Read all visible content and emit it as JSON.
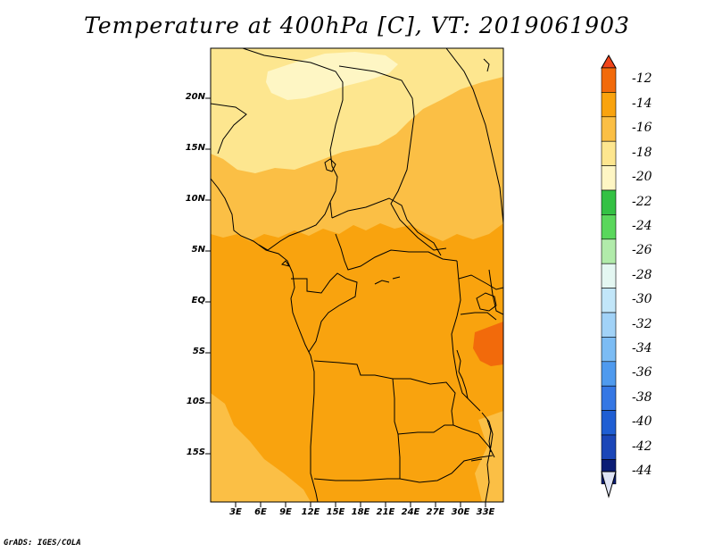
{
  "title": "Temperature at 400hPa [C], VT: 2019061903",
  "map": {
    "variable": "Temperature",
    "level": "400hPa",
    "units": "C",
    "valid_time": "2019061903",
    "lat_labels": [
      "20N",
      "15N",
      "10N",
      "5N",
      "EQ",
      "5S",
      "10S",
      "15S"
    ],
    "lon_labels": [
      "3E",
      "6E",
      "9E",
      "12E",
      "15E",
      "18E",
      "21E",
      "24E",
      "27E",
      "30E",
      "33E"
    ],
    "colors": {
      "c_le_22": "#fef6c4",
      "c_20_18": "#fde68f",
      "c_18_16": "#fbbf45",
      "c_16_14": "#f9a30e",
      "c_14_12": "#f26a0b",
      "c_gt_12": "#f0441a",
      "boundary": "#000000"
    }
  },
  "colorbar": {
    "labels": [
      "-12",
      "-14",
      "-16",
      "-18",
      "-20",
      "-22",
      "-24",
      "-26",
      "-28",
      "-30",
      "-32",
      "-34",
      "-36",
      "-38",
      "-40",
      "-42",
      "-44"
    ],
    "swatches": [
      "#f0441a",
      "#f26a0b",
      "#f9a30e",
      "#fbbf45",
      "#fde68f",
      "#fef6c4",
      "#34c144",
      "#5ad75c",
      "#b1ebaa",
      "#e4f7f2",
      "#c2e6f9",
      "#a1d2f7",
      "#7cbcf4",
      "#4f9aee",
      "#3577e4",
      "#1f5ed3",
      "#1b46b8",
      "#0b1d75",
      "#dfe4f5"
    ]
  },
  "credit": "GrADS: IGES/COLA"
}
